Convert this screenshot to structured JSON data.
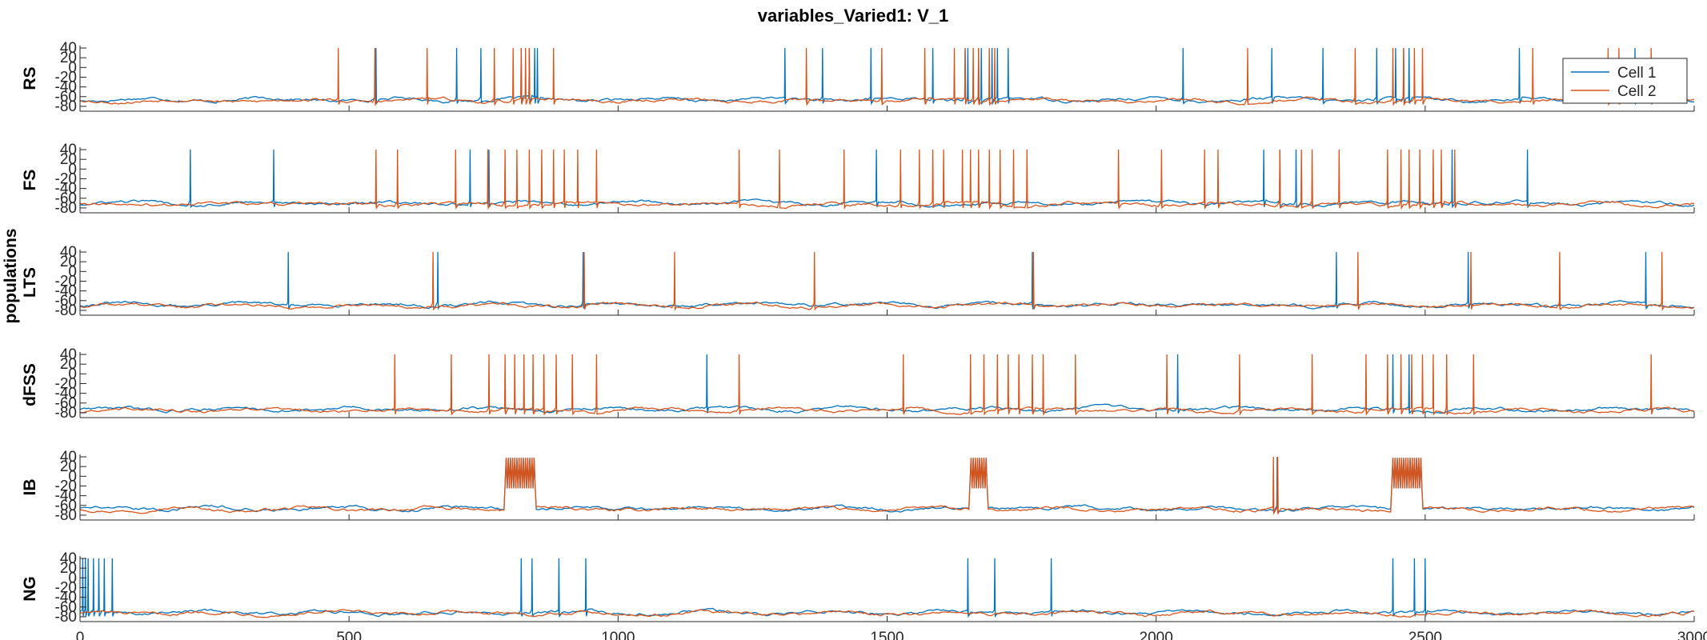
{
  "chart_data": {
    "type": "line",
    "title": "variables_Varied1: V_1",
    "ylabel": "populations",
    "xlim": [
      0,
      3000
    ],
    "ylim": [
      -90,
      45
    ],
    "x_ticks": [
      "0",
      "500",
      "1000",
      "1500",
      "2000",
      "2500",
      "3000"
    ],
    "y_ticks": [
      "40",
      "20",
      "0",
      "-20",
      "-40",
      "-60",
      "-80"
    ],
    "legend": {
      "position": "top-right",
      "entries": [
        "Cell 1",
        "Cell 2"
      ]
    },
    "colors": {
      "Cell 1": "#0072BD",
      "Cell 2": "#D95319"
    },
    "panels": [
      {
        "name": "RS",
        "baseline": -68,
        "cell1_spikes": [
          550,
          700,
          745,
          820,
          835,
          845,
          850,
          1310,
          1380,
          1470,
          1585,
          1645,
          1650,
          1670,
          1675,
          1695,
          1705,
          1725,
          2050,
          2215,
          2310,
          2410,
          2445,
          2460,
          2470,
          2675,
          2890
        ],
        "cell2_spikes": [
          480,
          548,
          645,
          770,
          805,
          820,
          828,
          835,
          880,
          1350,
          1490,
          1570,
          1625,
          1645,
          1660,
          1670,
          1690,
          1700,
          1705,
          2170,
          2370,
          2440,
          2460,
          2480,
          2495,
          2700,
          2840,
          2860,
          2920
        ]
      },
      {
        "name": "FS",
        "baseline": -72,
        "cell1_spikes": [
          205,
          360,
          725,
          760,
          1480,
          2200,
          2230,
          2260,
          2550,
          2690
        ],
        "cell2_spikes": [
          550,
          590,
          698,
          758,
          790,
          812,
          835,
          858,
          880,
          900,
          925,
          960,
          1225,
          1300,
          1420,
          1525,
          1560,
          1585,
          1605,
          1640,
          1655,
          1670,
          1690,
          1710,
          1735,
          1760,
          1930,
          2010,
          2090,
          2115,
          2230,
          2270,
          2290,
          2340,
          2430,
          2455,
          2470,
          2490,
          2515,
          2530,
          2555
        ]
      },
      {
        "name": "LTS",
        "baseline": -70,
        "cell1_spikes": [
          387,
          665,
          935,
          1770,
          2335,
          2580,
          2910
        ],
        "cell2_spikes": [
          656,
          937,
          1105,
          1365,
          1772,
          2375,
          2585,
          2750,
          2940
        ]
      },
      {
        "name": "dFSS",
        "baseline": -75,
        "cell1_spikes": [
          1165,
          2040,
          2440,
          2470
        ],
        "cell2_spikes": [
          585,
          690,
          760,
          790,
          808,
          825,
          842,
          862,
          885,
          915,
          960,
          1225,
          1530,
          1655,
          1680,
          1705,
          1725,
          1745,
          1770,
          1790,
          1850,
          2020,
          2155,
          2290,
          2390,
          2430,
          2455,
          2475,
          2495,
          2515,
          2540,
          2590,
          2920
        ]
      },
      {
        "name": "IB",
        "baseline": -68,
        "bursts": [
          [
            790,
            845
          ],
          [
            1655,
            1685
          ],
          [
            2440,
            2495
          ]
        ],
        "cell1_spikes": [
          2225
        ],
        "cell2_spikes": [
          2218,
          2226
        ]
      },
      {
        "name": "NG",
        "baseline": -73,
        "cell1_spikes": [
          5,
          10,
          15,
          25,
          35,
          45,
          60,
          820,
          840,
          890,
          940,
          1650,
          1700,
          1805,
          2440,
          2480,
          2500
        ],
        "cell2_spikes": []
      }
    ]
  }
}
